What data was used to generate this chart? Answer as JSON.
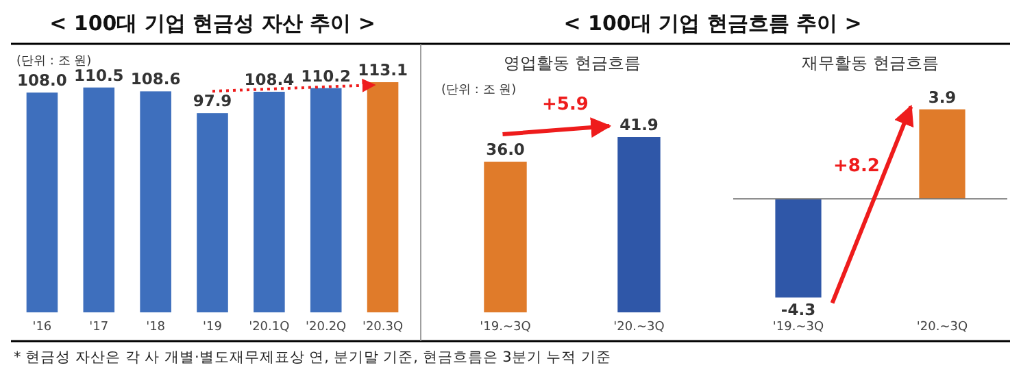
{
  "chart_data": [
    {
      "type": "bar",
      "title": "< 100대 기업 현금성 자산 추이 >",
      "categories": [
        "'16",
        "'17",
        "'18",
        "'19",
        "'20.1Q",
        "'20.2Q",
        "'20.3Q"
      ],
      "values": [
        108.0,
        110.5,
        108.6,
        97.9,
        108.4,
        110.2,
        113.1
      ],
      "colors": [
        "#3e6fbd",
        "#3e6fbd",
        "#3e6fbd",
        "#3e6fbd",
        "#3e6fbd",
        "#3e6fbd",
        "#e07b2a"
      ],
      "value_labels": [
        "108.0",
        "110.5",
        "108.6",
        "97.9",
        "108.4",
        "110.2",
        "113.1"
      ],
      "tick_labels": "x",
      "annotations": [
        "(단위 : 조 원)"
      ]
    },
    {
      "type": "bar",
      "title": "< 100대 기업 현금흐름 추이 >",
      "subtitle": "영업활동 현금흐름",
      "categories": [
        "'19.~3Q",
        "'20.~3Q"
      ],
      "values": [
        36.0,
        41.9
      ],
      "colors": [
        "#e07b2a",
        "#2f57a8"
      ],
      "value_labels": [
        "36.0",
        "41.9"
      ],
      "tick_labels": "x",
      "annotations": [
        "(단위 : 조 원)",
        "+5.9"
      ]
    },
    {
      "type": "bar",
      "subtitle": "재무활동 현금흐름",
      "categories": [
        "'19.~3Q",
        "'20.~3Q"
      ],
      "values": [
        -4.3,
        3.9
      ],
      "colors": [
        "#2f57a8",
        "#e07b2a"
      ],
      "value_labels": [
        "-4.3",
        "3.9"
      ],
      "tick_labels": "x",
      "annotations": [
        "+8.2",
        "* 현금성 자산은 각 사 개별·별도재무제표상 연, 분기말 기준, 현금흐름은 3분기 누적 기준"
      ]
    }
  ]
}
